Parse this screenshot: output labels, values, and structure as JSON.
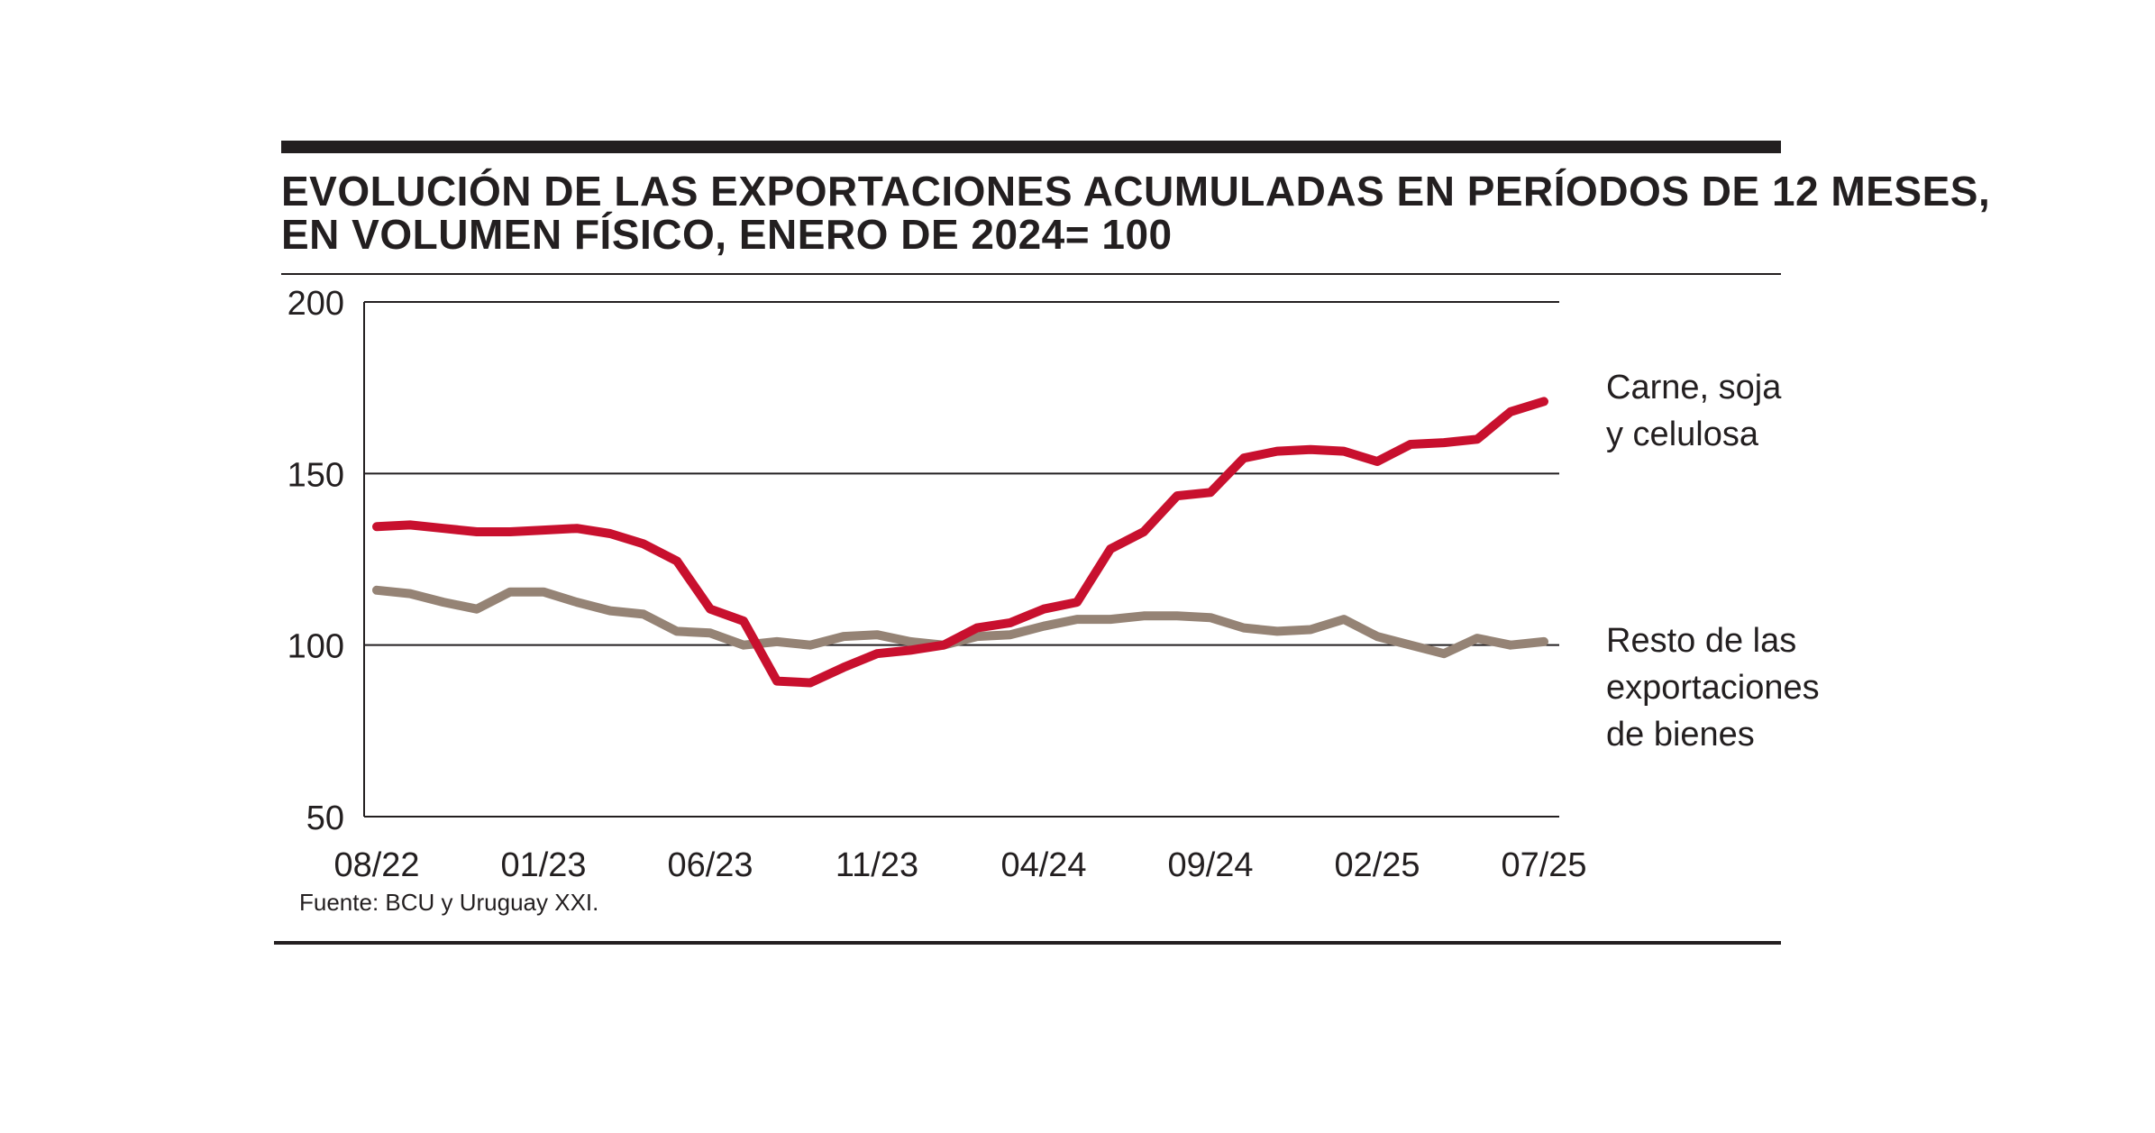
{
  "colors": {
    "rule": "#231f20",
    "red_series": "#c8102e",
    "taupe_series": "#958375",
    "grid": "#231f20"
  },
  "chart_data": {
    "type": "line",
    "title": [
      "EVOLUCIÓN DE LAS EXPORTACIONES ACUMULADAS EN PERÍODOS DE 12 MESES,",
      "EN VOLUMEN FÍSICO, ENERO DE 2024= 100"
    ],
    "x": [
      "08/22",
      "09/22",
      "10/22",
      "11/22",
      "12/22",
      "01/23",
      "02/23",
      "03/23",
      "04/23",
      "05/23",
      "06/23",
      "07/23",
      "08/23",
      "09/23",
      "10/23",
      "11/23",
      "12/23",
      "01/24",
      "02/24",
      "03/24",
      "04/24",
      "05/24",
      "06/24",
      "07/24",
      "08/24",
      "09/24",
      "10/24",
      "11/24",
      "12/24",
      "01/25",
      "02/25",
      "03/25",
      "04/25",
      "05/25",
      "06/25",
      "07/25"
    ],
    "x_tick_labels": [
      "08/22",
      "01/23",
      "06/23",
      "11/23",
      "04/24",
      "09/24",
      "02/25",
      "07/25"
    ],
    "y_ticks": [
      50,
      100,
      150,
      200
    ],
    "ylim": [
      50,
      200
    ],
    "grid": "horizontal lines at 100, 150, 200",
    "series": [
      {
        "name": "Carne, soja y celulosa",
        "label_lines": [
          "Carne, soja",
          "y celulosa"
        ],
        "color": "#c8102e",
        "values": [
          134.5,
          135,
          134,
          133,
          133,
          133.5,
          134,
          132.5,
          129.5,
          124.5,
          110.5,
          107,
          89.5,
          89,
          93.5,
          97.5,
          98.5,
          100,
          105,
          106.5,
          110.5,
          112.5,
          128,
          133,
          143.5,
          144.5,
          154.5,
          156.5,
          157,
          156.5,
          153.5,
          158.5,
          159,
          160,
          168,
          171
        ]
      },
      {
        "name": "Resto de las exportaciones de bienes",
        "label_lines": [
          "Resto de las",
          "exportaciones",
          "de bienes"
        ],
        "color": "#958375",
        "values": [
          116,
          115,
          112.5,
          110.5,
          115.5,
          115.5,
          112.5,
          110,
          109,
          104,
          103.5,
          100,
          101,
          100,
          102.5,
          103,
          101,
          100,
          102.5,
          103,
          105.5,
          107.5,
          107.5,
          108.5,
          108.5,
          108,
          105,
          104,
          104.5,
          107.5,
          102.5,
          100,
          97.5,
          102,
          100,
          101
        ]
      }
    ]
  },
  "source": "Fuente: BCU y Uruguay XXI."
}
